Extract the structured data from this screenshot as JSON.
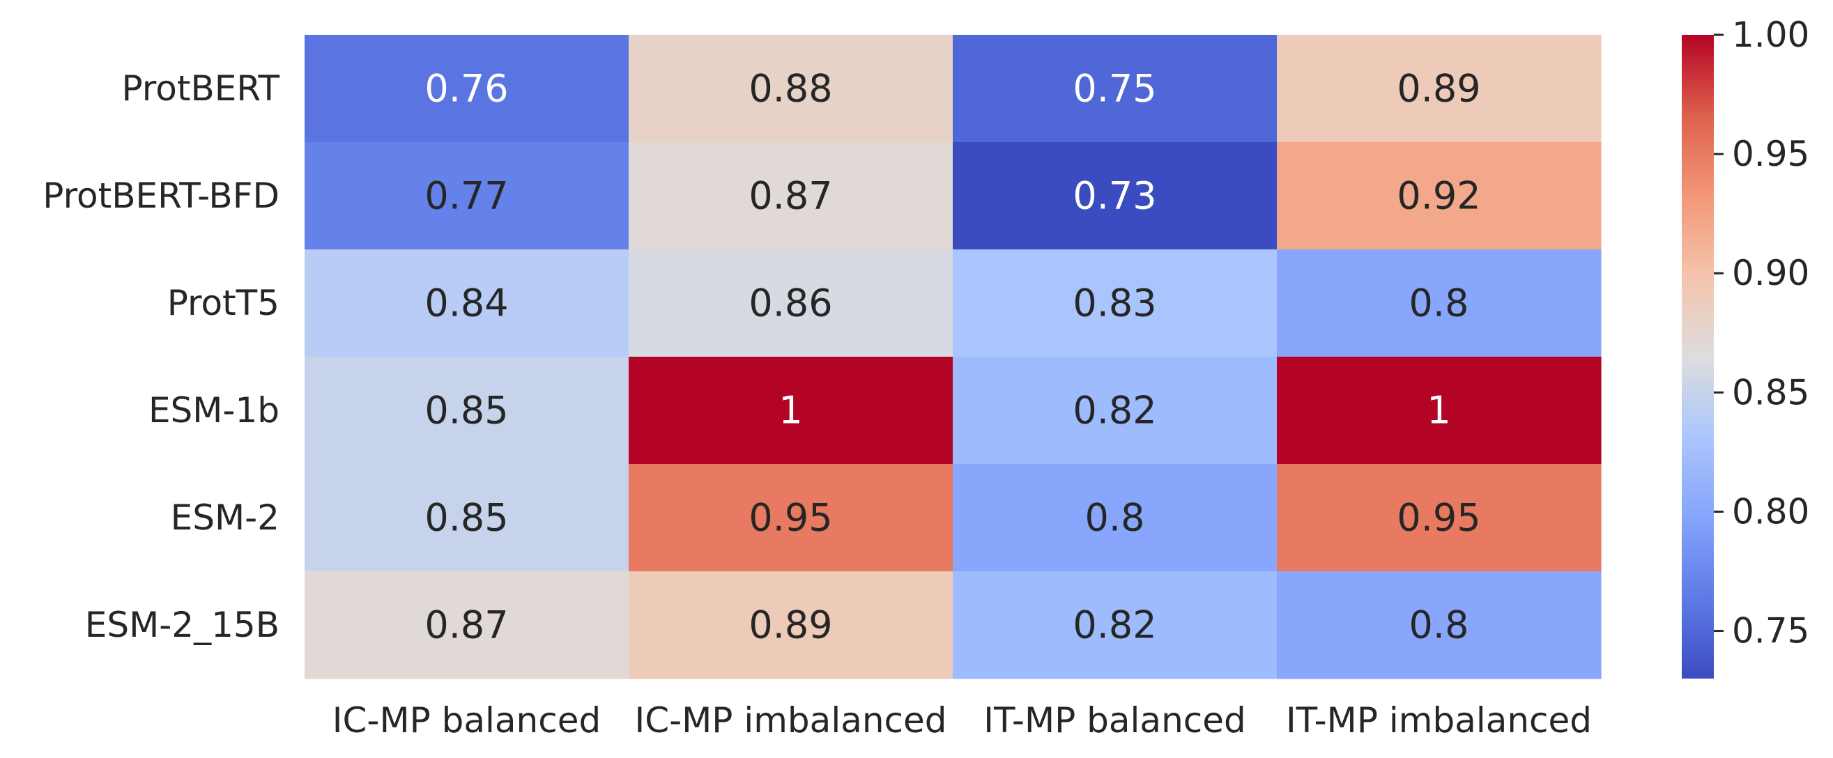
{
  "chart_data": {
    "type": "heatmap",
    "title": "",
    "xlabel": "",
    "ylabel": "",
    "columns": [
      "IC-MP balanced",
      "IC-MP imbalanced",
      "IT-MP balanced",
      "IT-MP imbalanced"
    ],
    "rows": [
      "ProtBERT",
      "ProtBERT-BFD",
      "ProtT5",
      "ESM-1b",
      "ESM-2",
      "ESM-2_15B"
    ],
    "values": [
      [
        0.76,
        0.88,
        0.75,
        0.89
      ],
      [
        0.77,
        0.87,
        0.73,
        0.92
      ],
      [
        0.84,
        0.86,
        0.83,
        0.8
      ],
      [
        0.85,
        1,
        0.82,
        1
      ],
      [
        0.85,
        0.95,
        0.8,
        0.95
      ],
      [
        0.87,
        0.89,
        0.82,
        0.8
      ]
    ],
    "colorbar": {
      "colormap": "coolwarm",
      "range": [
        0.73,
        1.0
      ],
      "ticks": [
        "0.75",
        "0.80",
        "0.85",
        "0.90",
        "0.95",
        "1.00"
      ],
      "tick_values": [
        0.75,
        0.8,
        0.85,
        0.9,
        0.95,
        1.0
      ]
    },
    "annotations": true,
    "grid": false
  }
}
